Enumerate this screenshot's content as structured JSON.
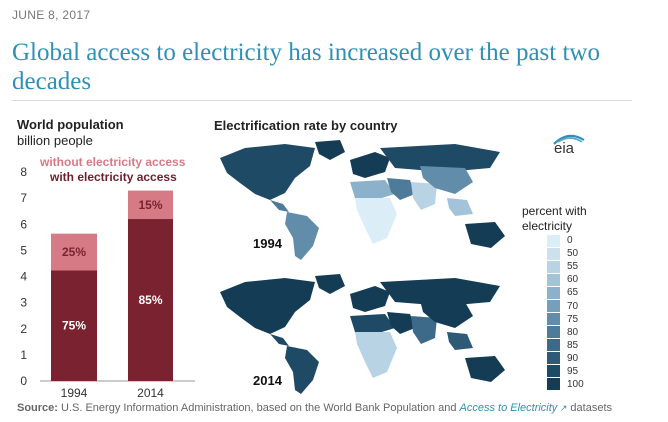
{
  "date": "JUNE 8, 2017",
  "headline": "Global access to electricity has increased over the past two decades",
  "population_panel": {
    "title": "World population",
    "subtitle": "billion people",
    "legend_without": "without electricity access",
    "legend_with": "with electricity access"
  },
  "map_panel": {
    "title": "Electrification rate by country",
    "year_top": "1994",
    "year_bottom": "2014",
    "scale_title_line1": "percent with",
    "scale_title_line2": "electricity",
    "scale_labels": [
      "0",
      "50",
      "55",
      "60",
      "65",
      "70",
      "75",
      "80",
      "85",
      "90",
      "95",
      "100"
    ],
    "scale_colors": [
      "#dbeef8",
      "#cbe1ee",
      "#b7d3e4",
      "#a2c3d8",
      "#8cb1ca",
      "#769fbb",
      "#618dab",
      "#4e7b9a",
      "#3d6a89",
      "#2d5a77",
      "#1f4a66",
      "#143c55"
    ]
  },
  "logo_text": "eia",
  "source": {
    "label": "Source:",
    "text": " U.S. Energy Information Administration, based on the World Bank Population and ",
    "link": "Access to Electricity",
    "suffix": " datasets"
  },
  "colors": {
    "with_access": "#7a2230",
    "without_access": "#d67b85",
    "headline": "#2f8fb5"
  },
  "chart_data": {
    "type": "bar",
    "stacked": true,
    "categories": [
      "1994",
      "2014"
    ],
    "series": [
      {
        "name": "with electricity access",
        "values": [
          4.23,
          6.2
        ],
        "labels": [
          "75%",
          "85%"
        ]
      },
      {
        "name": "without electricity access",
        "values": [
          1.41,
          1.09
        ],
        "labels": [
          "25%",
          "15%"
        ]
      }
    ],
    "yticks": [
      "0",
      "1",
      "2",
      "3",
      "4",
      "5",
      "6",
      "7",
      "8"
    ],
    "ylim": [
      0,
      8
    ],
    "title": "World population",
    "ylabel": "billion people"
  }
}
